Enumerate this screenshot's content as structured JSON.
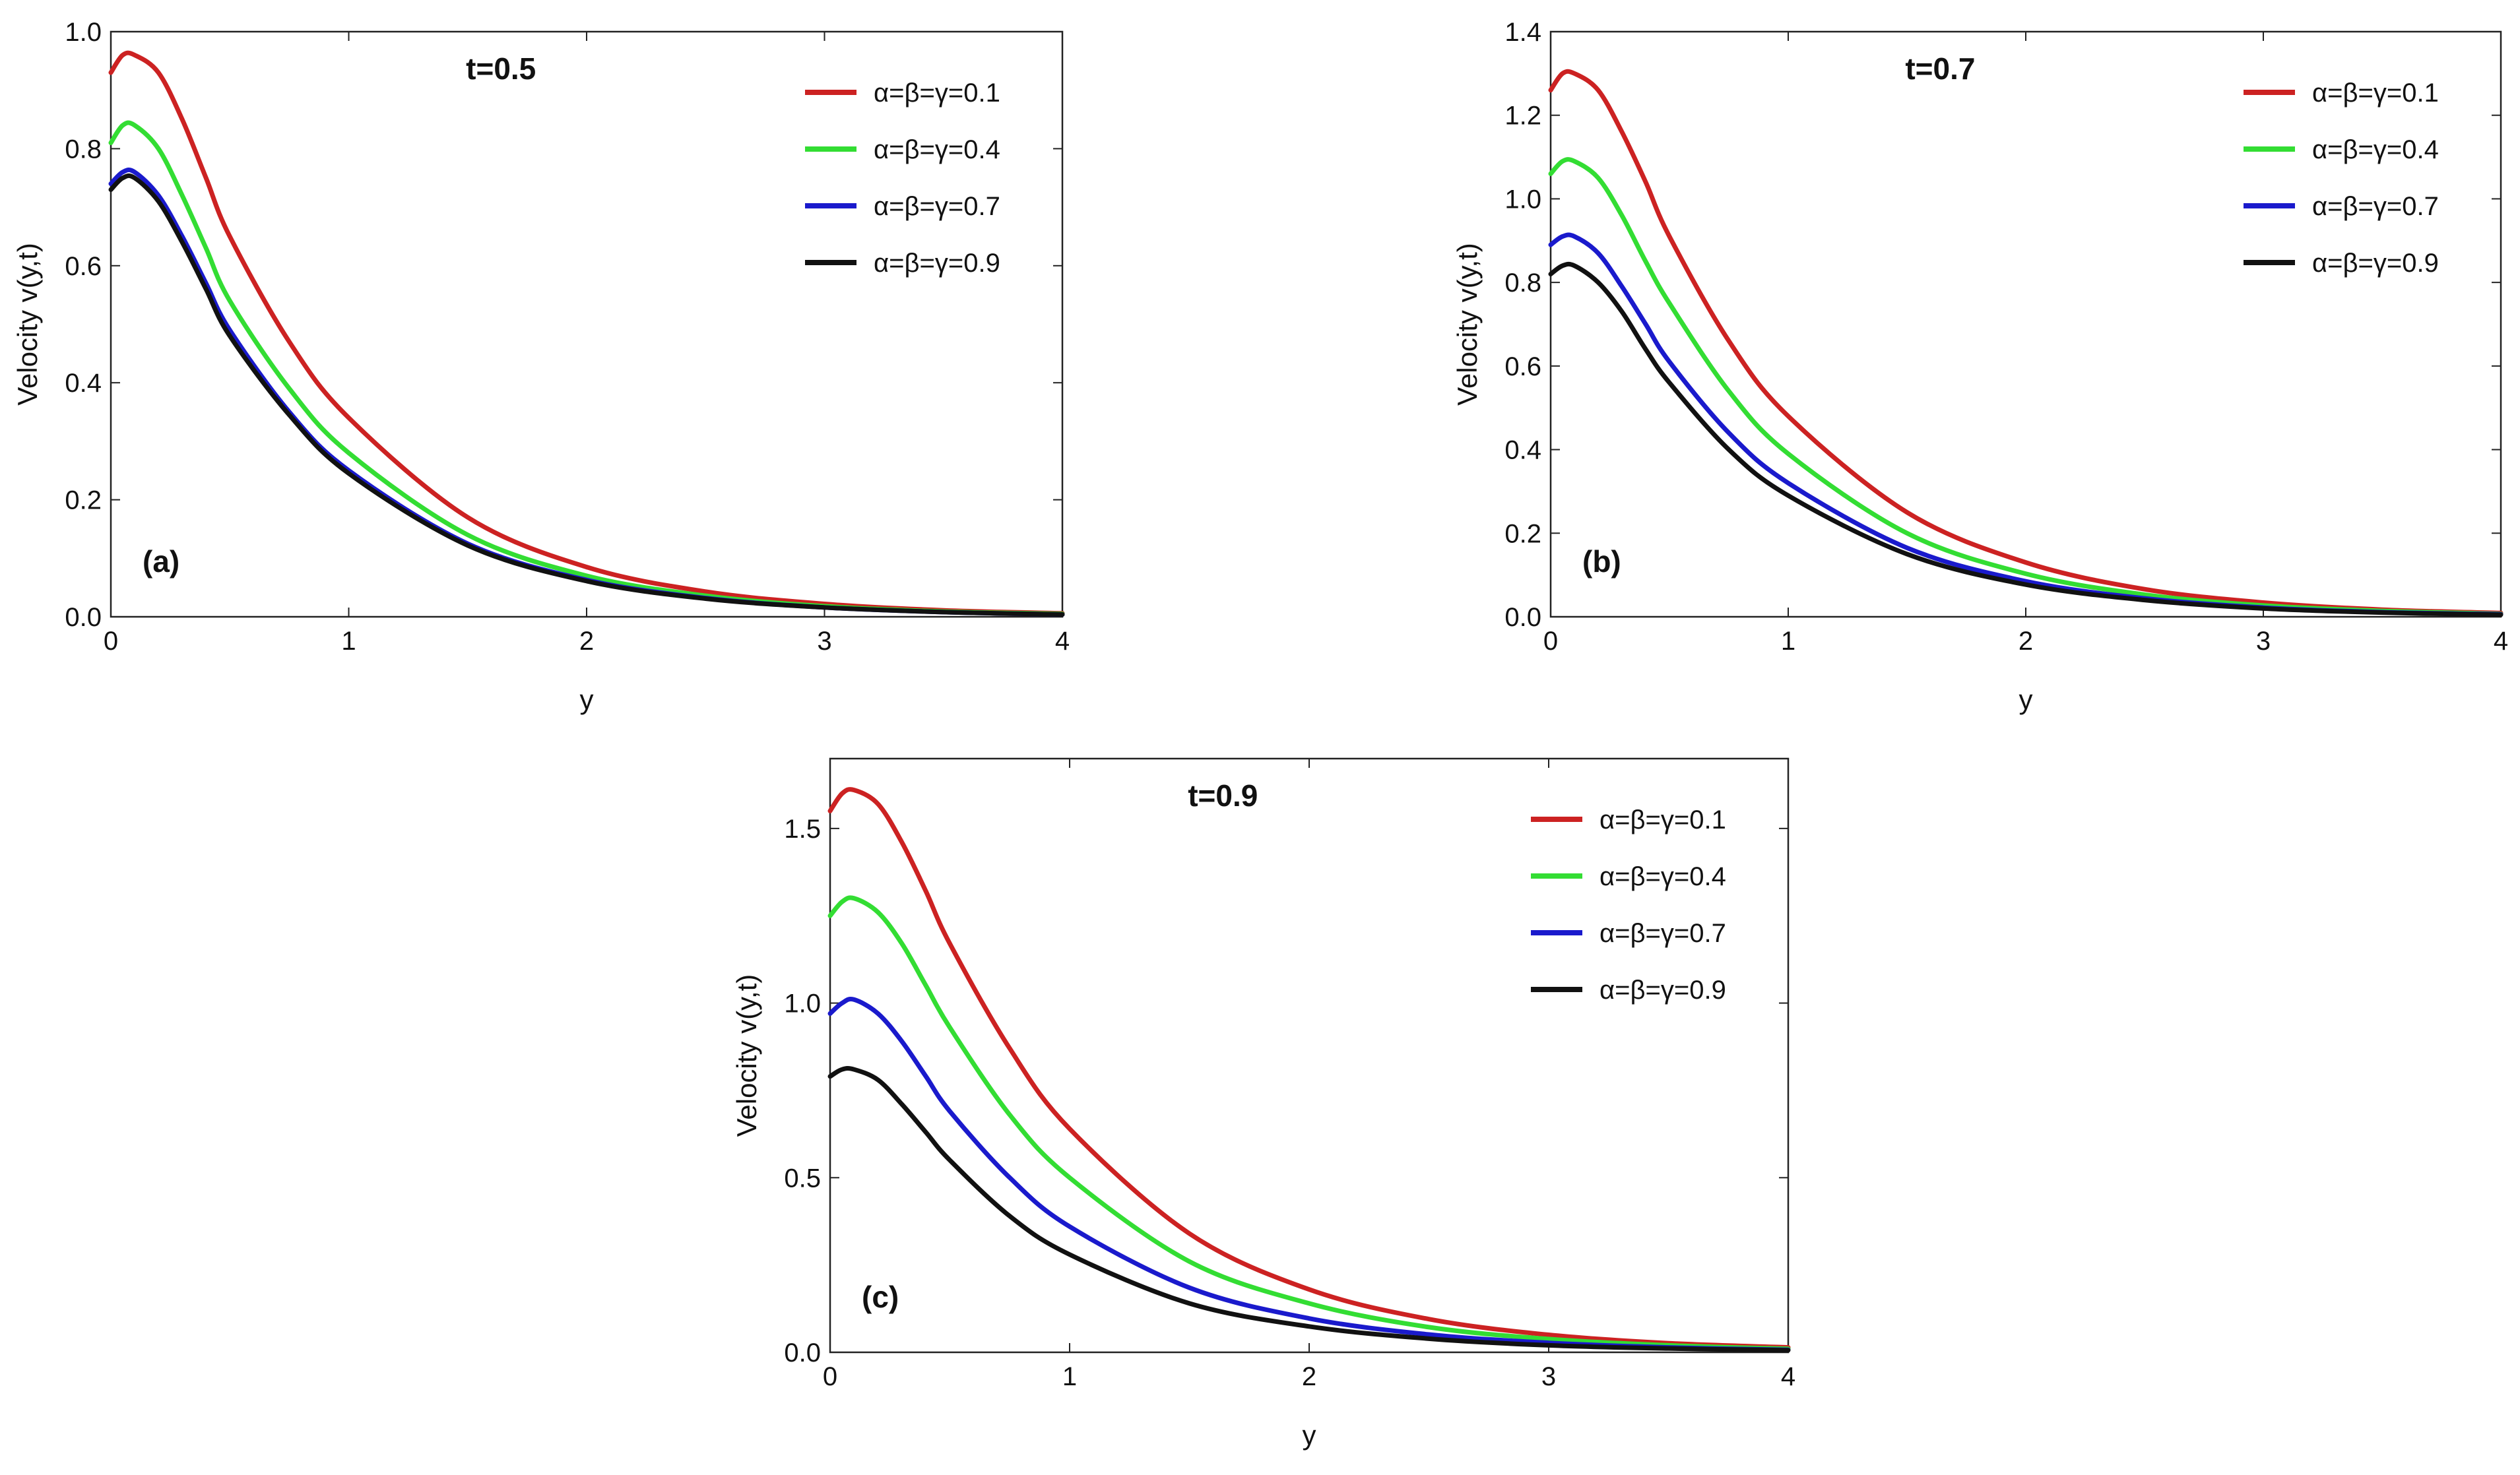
{
  "colors": {
    "red": "#cc2222",
    "green": "#33dd33",
    "blue": "#1a1acc",
    "black": "#111111"
  },
  "chart_data": [
    {
      "type": "line",
      "panel_label": "(a)",
      "title": "t=0.5",
      "xlabel": "y",
      "ylabel": "Velocity v(y,t)",
      "xlim": [
        0,
        4
      ],
      "ylim": [
        0,
        1.0
      ],
      "xticks": [
        0,
        1,
        2,
        3,
        4
      ],
      "xtick_labels": [
        "0",
        "1",
        "2",
        "3",
        "4"
      ],
      "yticks": [
        0,
        0.2,
        0.4,
        0.6,
        0.8,
        1.0
      ],
      "ytick_labels": [
        "0.0",
        "0.2",
        "0.4",
        "0.6",
        "0.8",
        "1.0"
      ],
      "legend_position": "top-right",
      "x": [
        0,
        0.05,
        0.1,
        0.2,
        0.3,
        0.4,
        0.5,
        0.75,
        1.0,
        1.5,
        2.0,
        2.5,
        3.0,
        3.5,
        4.0
      ],
      "series": [
        {
          "name": "α=β=γ=0.1",
          "color": "#cc2222",
          "values": [
            0.93,
            0.96,
            0.96,
            0.93,
            0.85,
            0.75,
            0.65,
            0.47,
            0.34,
            0.17,
            0.085,
            0.043,
            0.022,
            0.011,
            0.006
          ]
        },
        {
          "name": "α=β=γ=0.4",
          "color": "#33dd33",
          "values": [
            0.81,
            0.84,
            0.84,
            0.8,
            0.72,
            0.63,
            0.54,
            0.39,
            0.28,
            0.14,
            0.07,
            0.036,
            0.018,
            0.009,
            0.005
          ]
        },
        {
          "name": "α=β=γ=0.7",
          "color": "#1a1acc",
          "values": [
            0.74,
            0.76,
            0.76,
            0.72,
            0.65,
            0.57,
            0.49,
            0.35,
            0.25,
            0.125,
            0.063,
            0.032,
            0.016,
            0.008,
            0.004
          ]
        },
        {
          "name": "α=β=γ=0.9",
          "color": "#111111",
          "values": [
            0.73,
            0.75,
            0.75,
            0.71,
            0.64,
            0.56,
            0.48,
            0.345,
            0.245,
            0.122,
            0.061,
            0.031,
            0.016,
            0.008,
            0.004
          ]
        }
      ]
    },
    {
      "type": "line",
      "panel_label": "(b)",
      "title": "t=0.7",
      "xlabel": "y",
      "ylabel": "Velocity v(y,t)",
      "xlim": [
        0,
        4
      ],
      "ylim": [
        0,
        1.4
      ],
      "xticks": [
        0,
        1,
        2,
        3,
        4
      ],
      "xtick_labels": [
        "0",
        "1",
        "2",
        "3",
        "4"
      ],
      "yticks": [
        0,
        0.2,
        0.4,
        0.6,
        0.8,
        1.0,
        1.2,
        1.4
      ],
      "ytick_labels": [
        "0.0",
        "0.2",
        "0.4",
        "0.6",
        "0.8",
        "1.0",
        "1.2",
        "1.4"
      ],
      "legend_position": "top-right",
      "x": [
        0,
        0.05,
        0.1,
        0.2,
        0.3,
        0.4,
        0.5,
        0.75,
        1.0,
        1.5,
        2.0,
        2.5,
        3.0,
        3.5,
        4.0
      ],
      "series": [
        {
          "name": "α=β=γ=0.1",
          "color": "#cc2222",
          "values": [
            1.26,
            1.3,
            1.3,
            1.26,
            1.16,
            1.04,
            0.91,
            0.66,
            0.48,
            0.25,
            0.13,
            0.066,
            0.034,
            0.017,
            0.009
          ]
        },
        {
          "name": "α=β=γ=0.4",
          "color": "#33dd33",
          "values": [
            1.06,
            1.09,
            1.09,
            1.05,
            0.96,
            0.85,
            0.75,
            0.54,
            0.39,
            0.2,
            0.103,
            0.053,
            0.027,
            0.014,
            0.007
          ]
        },
        {
          "name": "α=β=γ=0.7",
          "color": "#1a1acc",
          "values": [
            0.89,
            0.91,
            0.91,
            0.87,
            0.79,
            0.7,
            0.61,
            0.44,
            0.32,
            0.165,
            0.085,
            0.044,
            0.022,
            0.011,
            0.006
          ]
        },
        {
          "name": "α=β=γ=0.9",
          "color": "#111111",
          "values": [
            0.82,
            0.84,
            0.84,
            0.8,
            0.73,
            0.64,
            0.56,
            0.4,
            0.29,
            0.15,
            0.077,
            0.04,
            0.02,
            0.01,
            0.005
          ]
        }
      ]
    },
    {
      "type": "line",
      "panel_label": "(c)",
      "title": "t=0.9",
      "xlabel": "y",
      "ylabel": "Velocity v(y,t)",
      "xlim": [
        0,
        4
      ],
      "ylim": [
        0,
        1.7
      ],
      "xticks": [
        0,
        1,
        2,
        3,
        4
      ],
      "xtick_labels": [
        "0",
        "1",
        "2",
        "3",
        "4"
      ],
      "yticks": [
        0,
        0.5,
        1.0,
        1.5
      ],
      "ytick_labels": [
        "0.0",
        "0.5",
        "1.0",
        "1.5"
      ],
      "legend_position": "top-right",
      "x": [
        0,
        0.05,
        0.1,
        0.2,
        0.3,
        0.4,
        0.5,
        0.75,
        1.0,
        1.5,
        2.0,
        2.5,
        3.0,
        3.5,
        4.0
      ],
      "series": [
        {
          "name": "α=β=γ=0.1",
          "color": "#cc2222",
          "values": [
            1.55,
            1.6,
            1.61,
            1.57,
            1.46,
            1.32,
            1.17,
            0.87,
            0.64,
            0.34,
            0.18,
            0.095,
            0.05,
            0.026,
            0.014
          ]
        },
        {
          "name": "α=β=γ=0.4",
          "color": "#33dd33",
          "values": [
            1.25,
            1.29,
            1.3,
            1.26,
            1.17,
            1.05,
            0.93,
            0.68,
            0.5,
            0.26,
            0.14,
            0.072,
            0.038,
            0.02,
            0.01
          ]
        },
        {
          "name": "α=β=γ=0.7",
          "color": "#1a1acc",
          "values": [
            0.97,
            1.0,
            1.01,
            0.97,
            0.89,
            0.79,
            0.69,
            0.5,
            0.36,
            0.185,
            0.097,
            0.051,
            0.027,
            0.014,
            0.007
          ]
        },
        {
          "name": "α=β=γ=0.9",
          "color": "#111111",
          "values": [
            0.79,
            0.81,
            0.81,
            0.78,
            0.71,
            0.63,
            0.55,
            0.39,
            0.28,
            0.14,
            0.074,
            0.039,
            0.02,
            0.011,
            0.006
          ]
        }
      ]
    }
  ]
}
